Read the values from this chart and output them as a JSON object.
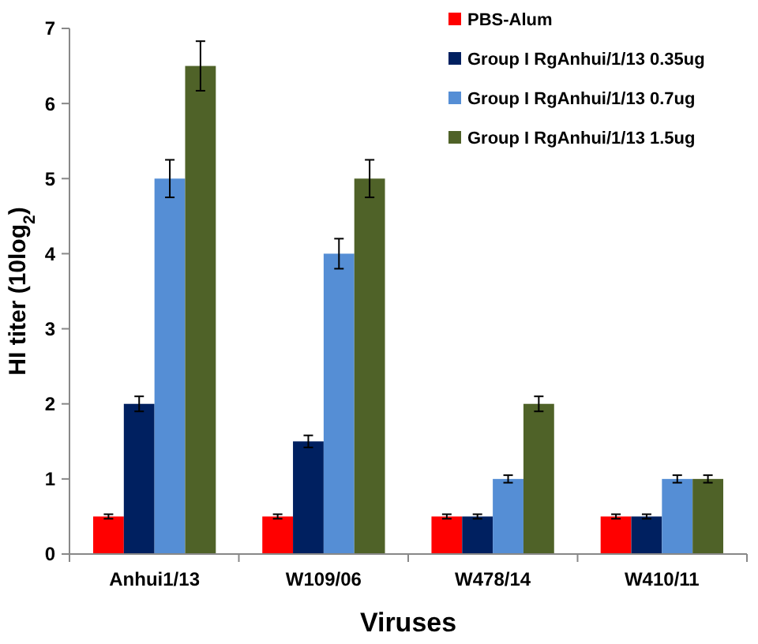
{
  "chart_data": {
    "type": "bar",
    "xlabel": "Viruses",
    "ylabel": "HI titer (10log$_{2}$)",
    "categories": [
      "Anhui1/13",
      "W109/06",
      "W478/14",
      "W410/11"
    ],
    "series": [
      {
        "name": "PBS-Alum",
        "color": "#ff0000",
        "values": [
          0.5,
          0.5,
          0.5,
          0.5
        ],
        "errors": [
          0.03,
          0.03,
          0.03,
          0.03
        ]
      },
      {
        "name": "Group I RgAnhui/1/13 0.35ug",
        "color": "#002060",
        "values": [
          2,
          1.5,
          0.5,
          0.5
        ],
        "errors": [
          0.1,
          0.08,
          0.03,
          0.03
        ]
      },
      {
        "name": "Group I RgAnhui/1/13 0.7ug",
        "color": "#558ed5",
        "values": [
          5,
          4,
          1,
          1
        ],
        "errors": [
          0.25,
          0.2,
          0.05,
          0.05
        ]
      },
      {
        "name": "Group I RgAnhui/1/13 1.5ug",
        "color": "#4f6228",
        "values": [
          6.5,
          5,
          2,
          1
        ],
        "errors": [
          0.33,
          0.25,
          0.1,
          0.05
        ]
      }
    ],
    "ylim": [
      0,
      7
    ],
    "yticks": [
      0,
      1,
      2,
      3,
      4,
      5,
      6,
      7
    ],
    "grid": false,
    "legend": "top right"
  }
}
